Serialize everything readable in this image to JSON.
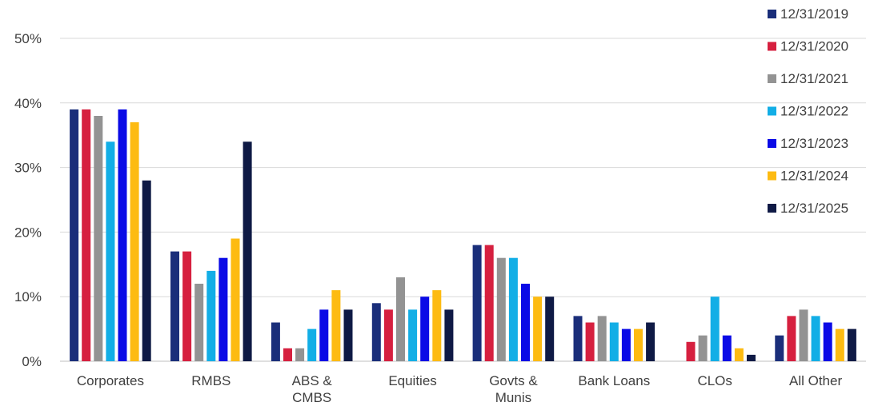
{
  "chart_data": {
    "type": "bar",
    "title": "",
    "xlabel": "",
    "ylabel": "",
    "ylim": [
      0,
      50
    ],
    "y_ticks": [
      "0%",
      "10%",
      "20%",
      "30%",
      "40%",
      "50%"
    ],
    "grid": true,
    "legend_position": "top-right",
    "categories": [
      [
        "Corporates"
      ],
      [
        "RMBS"
      ],
      [
        "ABS &",
        "CMBS"
      ],
      [
        "Equities"
      ],
      [
        "Govts &",
        "Munis"
      ],
      [
        "Bank Loans"
      ],
      [
        "CLOs"
      ],
      [
        "All Other"
      ]
    ],
    "series": [
      {
        "name": "12/31/2019",
        "color": "#1a2e7a",
        "values": [
          39,
          17,
          6,
          9,
          18,
          7,
          null,
          4
        ]
      },
      {
        "name": "12/31/2020",
        "color": "#d6203f",
        "values": [
          39,
          17,
          2,
          8,
          18,
          6,
          3,
          7
        ]
      },
      {
        "name": "12/31/2021",
        "color": "#939393",
        "values": [
          38,
          12,
          2,
          13,
          16,
          7,
          4,
          8
        ]
      },
      {
        "name": "12/31/2022",
        "color": "#12aee6",
        "values": [
          34,
          14,
          5,
          8,
          16,
          6,
          10,
          7
        ]
      },
      {
        "name": "12/31/2023",
        "color": "#0a0ae6",
        "values": [
          39,
          16,
          8,
          10,
          12,
          5,
          4,
          6
        ]
      },
      {
        "name": "12/31/2024",
        "color": "#fdbb12",
        "values": [
          37,
          19,
          11,
          11,
          10,
          5,
          2,
          5
        ]
      },
      {
        "name": "12/31/2025",
        "color": "#0f1a45",
        "values": [
          28,
          34,
          8,
          8,
          10,
          6,
          1,
          5
        ]
      }
    ]
  }
}
